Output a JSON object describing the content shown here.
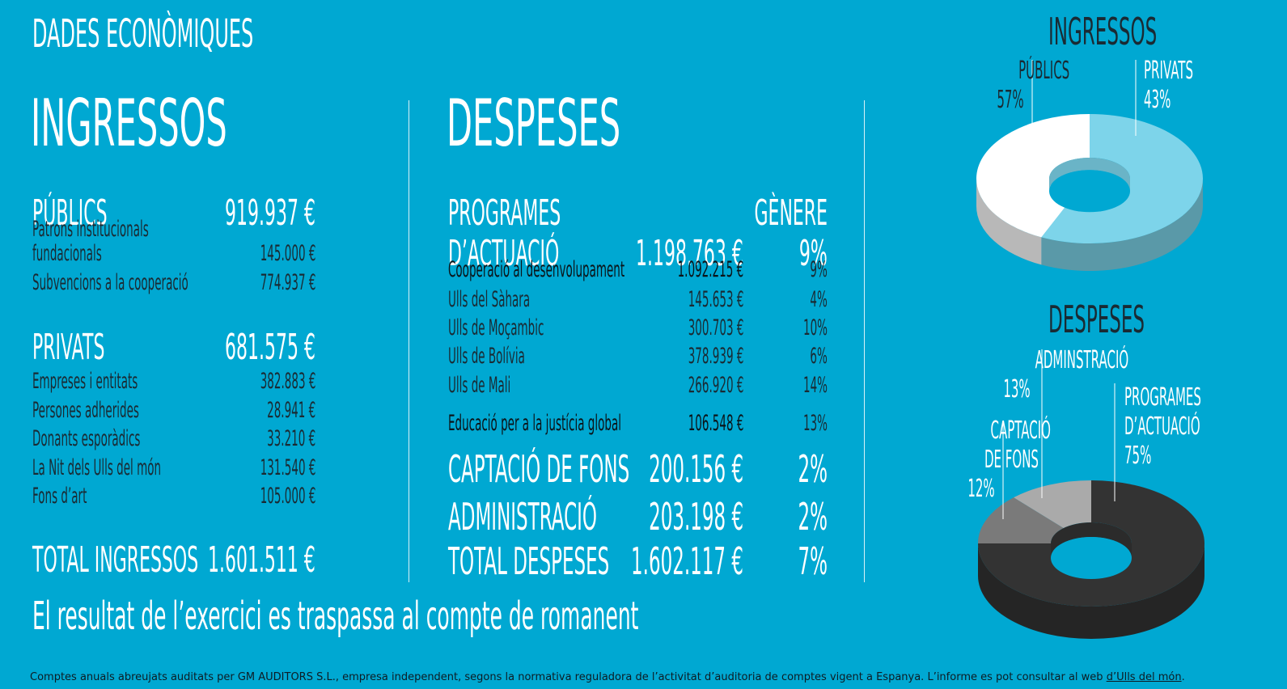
{
  "header": {
    "title": "DADES ECONÒMIQUES"
  },
  "income": {
    "title": "INGRESSOS",
    "public": {
      "label": "PÚBLICS",
      "value": "919.937 €",
      "items": [
        {
          "label": "Patrons institucionals",
          "label2": "fundacionals",
          "value": "145.000 €"
        },
        {
          "label": "Subvencions a la cooperació",
          "value": "774.937 €"
        }
      ]
    },
    "private": {
      "label": "PRIVATS",
      "value": "681.575 €",
      "items": [
        {
          "label": "Empreses i entitats",
          "value": "382.883 €"
        },
        {
          "label": "Persones adherides",
          "value": "28.941 €"
        },
        {
          "label": "Donants esporàdics",
          "value": "33.210 €"
        },
        {
          "label": "La Nit dels Ulls del món",
          "value": "131.540 €"
        },
        {
          "label": "Fons d’art",
          "value": "105.000 €"
        }
      ]
    },
    "total": {
      "label": "TOTAL INGRESSOS",
      "value": "1.601.511 €"
    }
  },
  "expenses": {
    "title": "DESPESES",
    "programs": {
      "label1": "PROGRAMES",
      "label2": "D’ACTUACIÓ",
      "gender_header": "GÈNERE",
      "value": "1.198.763 €",
      "gender": "9%",
      "cooperation": {
        "label": "Cooperació al desenvolupament",
        "value": "1.092.215 €",
        "gender": "9%"
      },
      "items": [
        {
          "label": "Ulls del Sàhara",
          "value": "145.653 €",
          "gender": "4%"
        },
        {
          "label": "Ulls de Moçambic",
          "value": "300.703 €",
          "gender": "10%"
        },
        {
          "label": "Ulls de Bolívia",
          "value": "378.939 €",
          "gender": "6%"
        },
        {
          "label": "Ulls de Mali",
          "value": "266.920 €",
          "gender": "14%"
        }
      ],
      "education": {
        "label": "Educació per a la justícia global",
        "value": "106.548 €",
        "gender": "13%"
      }
    },
    "fundraising": {
      "label": "CAPTACIÓ DE FONS",
      "value": "200.156 €",
      "gender": "2%"
    },
    "administration": {
      "label": "ADMINISTRACIÓ",
      "value": "203.198 €",
      "gender": "2%"
    },
    "total": {
      "label": "TOTAL DESPESES",
      "value": "1.602.117 €",
      "gender": "7%"
    }
  },
  "result_text": "El resultat de l’exercici es traspassa al compte de romanent",
  "footer": {
    "text": "Comptes anuals abreujats auditats per GM AUDITORS S.L., empresa independent, segons la normativa reguladora de l’activitat d’auditoria de comptes vigent a Espanya. L’informe es pot consultar al web ",
    "link": "d’Ulls del món",
    "end": "."
  },
  "chart_data": [
    {
      "type": "pie",
      "title": "INGRESSOS",
      "categories": [
        "PÚBLICS",
        "PRIVATS"
      ],
      "values": [
        57,
        43
      ],
      "labels": [
        {
          "name": "PÚBLICS",
          "pct": "57%"
        },
        {
          "name": "PRIVATS",
          "pct": "43%"
        }
      ],
      "colors": [
        "#7dd4ea",
        "#ffffff"
      ]
    },
    {
      "type": "pie",
      "title": "DESPESES",
      "categories": [
        "PROGRAMES D’ACTUACIÓ",
        "ADMINSTRACIÓ",
        "CAPTACIÓ DE FONS"
      ],
      "values": [
        75,
        13,
        12
      ],
      "labels": [
        {
          "name1": "ADMINSTRACIÓ",
          "pct": "13%"
        },
        {
          "name1": "CAPTACIÓ",
          "name2": "DE FONS",
          "pct": "12%"
        },
        {
          "name1": "PROGRAMES",
          "name2": "D’ACTUACIÓ",
          "pct": "75%"
        }
      ],
      "colors": [
        "#333333",
        "#7a7a7a",
        "#aaaaaa"
      ]
    }
  ],
  "colors": {
    "background": "#00a8d2",
    "text_dark": "#1a2a33"
  }
}
